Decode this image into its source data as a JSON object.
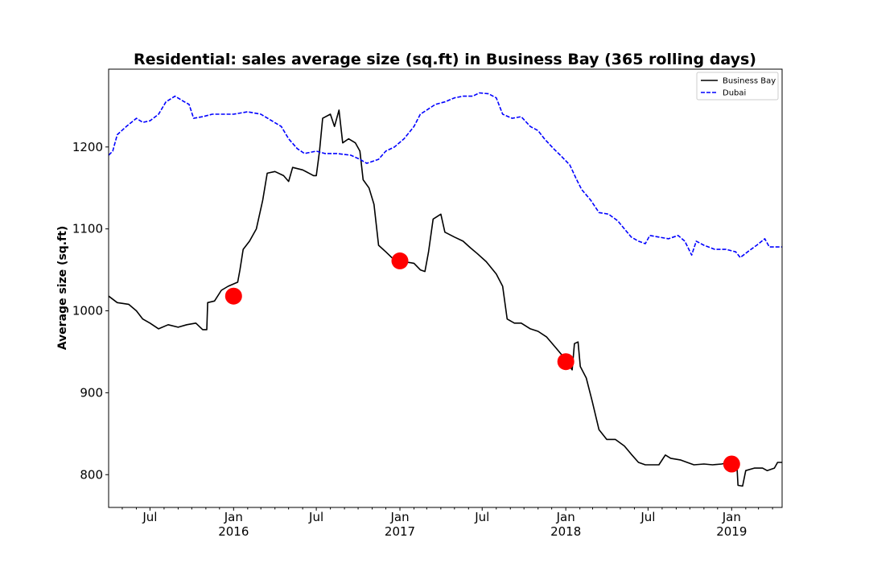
{
  "chart_data": {
    "type": "line",
    "title": "Residential: sales average size (sq.ft) in Business Bay (365 rolling days)",
    "xlabel": "",
    "ylabel": "Average size (sq.ft)",
    "xlim": [
      "2015-04-01",
      "2019-04-22"
    ],
    "ylim": [
      760,
      1295
    ],
    "x_ticks_major": [
      {
        "date": "2015-07-01",
        "label": "Jul",
        "sublabel": ""
      },
      {
        "date": "2016-01-01",
        "label": "Jan",
        "sublabel": "2016"
      },
      {
        "date": "2016-07-01",
        "label": "Jul",
        "sublabel": ""
      },
      {
        "date": "2017-01-01",
        "label": "Jan",
        "sublabel": "2017"
      },
      {
        "date": "2017-07-01",
        "label": "Jul",
        "sublabel": ""
      },
      {
        "date": "2018-01-01",
        "label": "Jan",
        "sublabel": "2018"
      },
      {
        "date": "2018-07-01",
        "label": "Jul",
        "sublabel": ""
      },
      {
        "date": "2019-01-01",
        "label": "Jan",
        "sublabel": "2019"
      }
    ],
    "x_ticks_minor": [
      "2015-05-01",
      "2015-06-01",
      "2015-08-01",
      "2015-09-01",
      "2015-10-01",
      "2015-11-01",
      "2015-12-01",
      "2016-02-01",
      "2016-03-01",
      "2016-04-01",
      "2016-05-01",
      "2016-06-01",
      "2016-08-01",
      "2016-09-01",
      "2016-10-01",
      "2016-11-01",
      "2016-12-01",
      "2017-02-01",
      "2017-03-01",
      "2017-04-01",
      "2017-05-01",
      "2017-06-01",
      "2017-08-01",
      "2017-09-01",
      "2017-10-01",
      "2017-11-01",
      "2017-12-01",
      "2018-02-01",
      "2018-03-01",
      "2018-04-01",
      "2018-05-01",
      "2018-06-01",
      "2018-08-01",
      "2018-09-01",
      "2018-10-01",
      "2018-11-01",
      "2018-12-01",
      "2019-02-01",
      "2019-03-01",
      "2019-04-01"
    ],
    "y_ticks": [
      800,
      900,
      1000,
      1100,
      1200
    ],
    "legend_position": "top-right",
    "grid": false,
    "series": [
      {
        "name": "Business Bay",
        "color": "#000000",
        "style": "solid",
        "points": [
          [
            "2015-04-01",
            1018
          ],
          [
            "2015-04-20",
            1010
          ],
          [
            "2015-05-15",
            1008
          ],
          [
            "2015-06-01",
            1000
          ],
          [
            "2015-06-15",
            990
          ],
          [
            "2015-07-01",
            985
          ],
          [
            "2015-07-20",
            978
          ],
          [
            "2015-08-10",
            983
          ],
          [
            "2015-09-01",
            980
          ],
          [
            "2015-09-20",
            983
          ],
          [
            "2015-10-10",
            985
          ],
          [
            "2015-10-25",
            977
          ],
          [
            "2015-11-03",
            977
          ],
          [
            "2015-11-05",
            1010
          ],
          [
            "2015-11-20",
            1012
          ],
          [
            "2015-12-05",
            1025
          ],
          [
            "2015-12-20",
            1030
          ],
          [
            "2016-01-10",
            1035
          ],
          [
            "2016-01-15",
            1050
          ],
          [
            "2016-01-22",
            1075
          ],
          [
            "2016-02-05",
            1085
          ],
          [
            "2016-02-20",
            1100
          ],
          [
            "2016-03-05",
            1135
          ],
          [
            "2016-03-15",
            1168
          ],
          [
            "2016-04-01",
            1170
          ],
          [
            "2016-04-20",
            1165
          ],
          [
            "2016-05-01",
            1158
          ],
          [
            "2016-05-10",
            1175
          ],
          [
            "2016-06-01",
            1172
          ],
          [
            "2016-06-15",
            1168
          ],
          [
            "2016-06-25",
            1165
          ],
          [
            "2016-07-01",
            1165
          ],
          [
            "2016-07-08",
            1195
          ],
          [
            "2016-07-15",
            1235
          ],
          [
            "2016-08-01",
            1240
          ],
          [
            "2016-08-10",
            1225
          ],
          [
            "2016-08-20",
            1245
          ],
          [
            "2016-08-28",
            1205
          ],
          [
            "2016-09-10",
            1210
          ],
          [
            "2016-09-25",
            1205
          ],
          [
            "2016-10-05",
            1195
          ],
          [
            "2016-10-12",
            1160
          ],
          [
            "2016-10-25",
            1150
          ],
          [
            "2016-11-05",
            1130
          ],
          [
            "2016-11-15",
            1080
          ],
          [
            "2016-12-01",
            1072
          ],
          [
            "2016-12-20",
            1062
          ],
          [
            "2017-01-10",
            1060
          ],
          [
            "2017-02-01",
            1058
          ],
          [
            "2017-02-15",
            1050
          ],
          [
            "2017-02-25",
            1048
          ],
          [
            "2017-03-05",
            1072
          ],
          [
            "2017-03-15",
            1112
          ],
          [
            "2017-04-01",
            1118
          ],
          [
            "2017-04-10",
            1096
          ],
          [
            "2017-05-01",
            1090
          ],
          [
            "2017-05-20",
            1085
          ],
          [
            "2017-06-05",
            1077
          ],
          [
            "2017-06-20",
            1070
          ],
          [
            "2017-07-10",
            1060
          ],
          [
            "2017-08-01",
            1045
          ],
          [
            "2017-08-15",
            1030
          ],
          [
            "2017-08-25",
            990
          ],
          [
            "2017-09-10",
            985
          ],
          [
            "2017-09-25",
            985
          ],
          [
            "2017-10-15",
            978
          ],
          [
            "2017-11-01",
            975
          ],
          [
            "2017-11-20",
            968
          ],
          [
            "2017-12-10",
            955
          ],
          [
            "2017-12-25",
            945
          ],
          [
            "2018-01-10",
            932
          ],
          [
            "2018-01-15",
            928
          ],
          [
            "2018-01-20",
            960
          ],
          [
            "2018-01-28",
            962
          ],
          [
            "2018-02-02",
            932
          ],
          [
            "2018-02-15",
            918
          ],
          [
            "2018-02-28",
            890
          ],
          [
            "2018-03-15",
            855
          ],
          [
            "2018-04-01",
            843
          ],
          [
            "2018-04-20",
            843
          ],
          [
            "2018-05-10",
            835
          ],
          [
            "2018-05-25",
            825
          ],
          [
            "2018-06-10",
            815
          ],
          [
            "2018-06-25",
            812
          ],
          [
            "2018-07-10",
            812
          ],
          [
            "2018-07-25",
            812
          ],
          [
            "2018-08-08",
            824
          ],
          [
            "2018-08-20",
            820
          ],
          [
            "2018-09-10",
            818
          ],
          [
            "2018-09-25",
            815
          ],
          [
            "2018-10-10",
            812
          ],
          [
            "2018-11-01",
            813
          ],
          [
            "2018-11-20",
            812
          ],
          [
            "2018-12-10",
            813
          ],
          [
            "2018-12-25",
            815
          ],
          [
            "2019-01-12",
            817
          ],
          [
            "2019-01-15",
            787
          ],
          [
            "2019-01-25",
            786
          ],
          [
            "2019-02-01",
            805
          ],
          [
            "2019-02-20",
            808
          ],
          [
            "2019-03-10",
            808
          ],
          [
            "2019-03-20",
            805
          ],
          [
            "2019-04-05",
            808
          ],
          [
            "2019-04-12",
            815
          ],
          [
            "2019-04-22",
            815
          ]
        ]
      },
      {
        "name": "Dubai",
        "color": "#0000ff",
        "style": "dashed",
        "points": [
          [
            "2015-04-01",
            1190
          ],
          [
            "2015-04-10",
            1195
          ],
          [
            "2015-04-20",
            1215
          ],
          [
            "2015-05-10",
            1225
          ],
          [
            "2015-06-01",
            1235
          ],
          [
            "2015-06-15",
            1230
          ],
          [
            "2015-07-01",
            1232
          ],
          [
            "2015-07-20",
            1240
          ],
          [
            "2015-08-05",
            1255
          ],
          [
            "2015-08-25",
            1262
          ],
          [
            "2015-09-15",
            1255
          ],
          [
            "2015-09-25",
            1252
          ],
          [
            "2015-10-05",
            1235
          ],
          [
            "2015-10-25",
            1237
          ],
          [
            "2015-11-15",
            1240
          ],
          [
            "2015-12-10",
            1240
          ],
          [
            "2016-01-01",
            1240
          ],
          [
            "2016-02-01",
            1243
          ],
          [
            "2016-03-01",
            1240
          ],
          [
            "2016-03-25",
            1232
          ],
          [
            "2016-04-15",
            1225
          ],
          [
            "2016-05-01",
            1210
          ],
          [
            "2016-05-20",
            1198
          ],
          [
            "2016-06-05",
            1192
          ],
          [
            "2016-07-01",
            1195
          ],
          [
            "2016-07-20",
            1192
          ],
          [
            "2016-08-15",
            1192
          ],
          [
            "2016-09-15",
            1190
          ],
          [
            "2016-10-05",
            1185
          ],
          [
            "2016-10-20",
            1180
          ],
          [
            "2016-11-15",
            1185
          ],
          [
            "2016-12-01",
            1195
          ],
          [
            "2016-12-20",
            1200
          ],
          [
            "2017-01-10",
            1210
          ],
          [
            "2017-02-01",
            1225
          ],
          [
            "2017-02-15",
            1240
          ],
          [
            "2017-03-01",
            1245
          ],
          [
            "2017-03-20",
            1252
          ],
          [
            "2017-04-10",
            1255
          ],
          [
            "2017-05-01",
            1260
          ],
          [
            "2017-05-20",
            1262
          ],
          [
            "2017-06-10",
            1262
          ],
          [
            "2017-06-25",
            1266
          ],
          [
            "2017-07-15",
            1265
          ],
          [
            "2017-08-01",
            1260
          ],
          [
            "2017-08-15",
            1240
          ],
          [
            "2017-09-05",
            1235
          ],
          [
            "2017-09-25",
            1237
          ],
          [
            "2017-10-15",
            1225
          ],
          [
            "2017-11-01",
            1220
          ],
          [
            "2017-11-15",
            1210
          ],
          [
            "2017-12-05",
            1198
          ],
          [
            "2017-12-20",
            1190
          ],
          [
            "2018-01-10",
            1178
          ],
          [
            "2018-01-25",
            1160
          ],
          [
            "2018-02-05",
            1148
          ],
          [
            "2018-02-25",
            1135
          ],
          [
            "2018-03-15",
            1120
          ],
          [
            "2018-04-05",
            1118
          ],
          [
            "2018-04-25",
            1110
          ],
          [
            "2018-05-10",
            1100
          ],
          [
            "2018-05-25",
            1090
          ],
          [
            "2018-06-10",
            1085
          ],
          [
            "2018-06-25",
            1082
          ],
          [
            "2018-07-05",
            1092
          ],
          [
            "2018-07-25",
            1090
          ],
          [
            "2018-08-15",
            1088
          ],
          [
            "2018-09-05",
            1092
          ],
          [
            "2018-09-20",
            1085
          ],
          [
            "2018-10-05",
            1068
          ],
          [
            "2018-10-15",
            1085
          ],
          [
            "2018-11-01",
            1080
          ],
          [
            "2018-11-25",
            1075
          ],
          [
            "2018-12-20",
            1075
          ],
          [
            "2019-01-10",
            1072
          ],
          [
            "2019-01-20",
            1065
          ],
          [
            "2019-02-05",
            1072
          ],
          [
            "2019-02-25",
            1080
          ],
          [
            "2019-03-15",
            1088
          ],
          [
            "2019-03-25",
            1078
          ],
          [
            "2019-04-22",
            1078
          ]
        ]
      }
    ],
    "markers": {
      "color": "#ff0000",
      "points": [
        [
          "2016-01-01",
          1018
        ],
        [
          "2017-01-01",
          1061
        ],
        [
          "2018-01-01",
          938
        ],
        [
          "2019-01-01",
          813
        ]
      ]
    }
  }
}
